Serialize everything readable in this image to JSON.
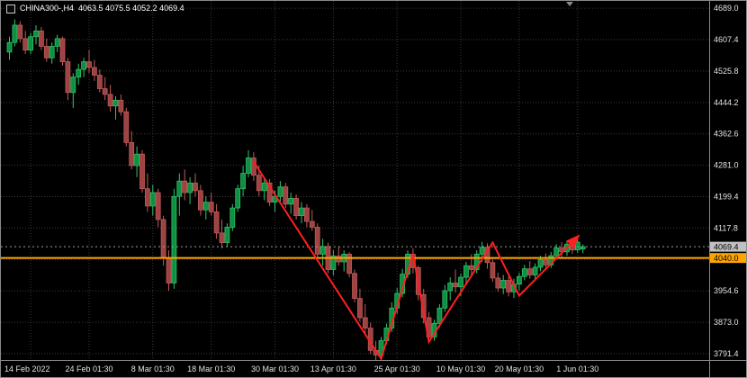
{
  "window": {
    "title_symbol": "CHINA300-,H4",
    "title_ohlc": "4063.5 4075.5 4052.2 4069.4"
  },
  "colors": {
    "background": "#000000",
    "grid": "#3a3a3a",
    "up_fill": "#0e8f41",
    "up_edge": "#31c56b",
    "down_fill": "#9e4242",
    "down_edge": "#c05c5c",
    "trendline": "#ff1f1f",
    "hline": "#ffa500",
    "bid_line": "#9c9c9c",
    "bid_tag_bg": "#c0c0c0",
    "axis_text": "#e2e2e2",
    "separator": "#8a8a8a"
  },
  "price_axis": {
    "bid_tag": "4069.4",
    "hline_tag": "4040.0"
  },
  "chart_data": {
    "type": "candlestick",
    "title": "CHINA300-,H4",
    "symbol": "CHINA300-",
    "timeframe": "H4",
    "legend_position": "none",
    "grid": true,
    "price_range": [
      3775,
      4708
    ],
    "y_ticks": [
      {
        "price": 4689.0,
        "label": "4689.0"
      },
      {
        "price": 4607.4,
        "label": "4607.4"
      },
      {
        "price": 4525.8,
        "label": "4525.8"
      },
      {
        "price": 4444.2,
        "label": "4444.2"
      },
      {
        "price": 4362.6,
        "label": "4362.6"
      },
      {
        "price": 4281.0,
        "label": "4281.0"
      },
      {
        "price": 4199.4,
        "label": "4199.4"
      },
      {
        "price": 4117.8,
        "label": "4117.8"
      },
      {
        "price": 4036.2,
        "label": "4036.2"
      },
      {
        "price": 3954.6,
        "label": "3954.6"
      },
      {
        "price": 3873.0,
        "label": "3873.0"
      },
      {
        "price": 3791.4,
        "label": "3791.4"
      }
    ],
    "time_labels": [
      {
        "bar": 4,
        "label": "14 Feb 2022"
      },
      {
        "bar": 15,
        "label": "24 Feb 01:30"
      },
      {
        "bar": 27,
        "label": "8 Mar 01:30"
      },
      {
        "bar": 38,
        "label": "18 Mar 01:30"
      },
      {
        "bar": 50,
        "label": "30 Mar 01:30"
      },
      {
        "bar": 61,
        "label": "13 Apr 01:30"
      },
      {
        "bar": 73,
        "label": "25 Apr 01:30"
      },
      {
        "bar": 85,
        "label": "10 May 01:30"
      },
      {
        "bar": 96,
        "label": "20 May 01:30"
      },
      {
        "bar": 107,
        "label": "1 Jun 01:30"
      }
    ],
    "bid": {
      "price": 4069.4,
      "label": "4069.4"
    },
    "hline": {
      "price": 4040.0,
      "label": "4040.0"
    },
    "trendline": {
      "points": [
        [
          46,
          4290
        ],
        [
          70,
          3778
        ],
        [
          76,
          4050
        ],
        [
          79,
          3822
        ],
        [
          91,
          4080
        ],
        [
          96,
          3942
        ],
        [
          107,
          4095
        ]
      ],
      "arrow_end": true
    },
    "candles": [
      [
        4575,
        4615,
        4555,
        4600
      ],
      [
        4600,
        4660,
        4590,
        4645
      ],
      [
        4645,
        4655,
        4600,
        4610
      ],
      [
        4610,
        4630,
        4570,
        4580
      ],
      [
        4580,
        4625,
        4570,
        4615
      ],
      [
        4615,
        4645,
        4595,
        4630
      ],
      [
        4630,
        4640,
        4580,
        4590
      ],
      [
        4590,
        4610,
        4550,
        4560
      ],
      [
        4560,
        4600,
        4545,
        4590
      ],
      [
        4590,
        4620,
        4575,
        4610
      ],
      [
        4610,
        4615,
        4540,
        4550
      ],
      [
        4550,
        4560,
        4450,
        4470
      ],
      [
        4470,
        4520,
        4430,
        4510
      ],
      [
        4510,
        4545,
        4490,
        4530
      ],
      [
        4530,
        4560,
        4510,
        4550
      ],
      [
        4550,
        4580,
        4520,
        4535
      ],
      [
        4535,
        4555,
        4500,
        4515
      ],
      [
        4515,
        4530,
        4470,
        4480
      ],
      [
        4480,
        4510,
        4450,
        4465
      ],
      [
        4465,
        4490,
        4420,
        4435
      ],
      [
        4435,
        4460,
        4400,
        4450
      ],
      [
        4450,
        4465,
        4410,
        4420
      ],
      [
        4420,
        4430,
        4330,
        4340
      ],
      [
        4340,
        4370,
        4270,
        4280
      ],
      [
        4280,
        4330,
        4250,
        4310
      ],
      [
        4310,
        4320,
        4210,
        4220
      ],
      [
        4220,
        4260,
        4160,
        4175
      ],
      [
        4175,
        4230,
        4150,
        4210
      ],
      [
        4210,
        4220,
        4120,
        4140
      ],
      [
        4140,
        4150,
        4020,
        4040
      ],
      [
        4040,
        4060,
        3955,
        3975
      ],
      [
        3975,
        4220,
        3960,
        4200
      ],
      [
        4200,
        4260,
        4150,
        4240
      ],
      [
        4240,
        4270,
        4190,
        4210
      ],
      [
        4210,
        4250,
        4180,
        4235
      ],
      [
        4235,
        4260,
        4200,
        4215
      ],
      [
        4215,
        4230,
        4150,
        4165
      ],
      [
        4165,
        4200,
        4140,
        4185
      ],
      [
        4185,
        4210,
        4150,
        4160
      ],
      [
        4160,
        4180,
        4090,
        4105
      ],
      [
        4105,
        4140,
        4065,
        4080
      ],
      [
        4080,
        4130,
        4070,
        4120
      ],
      [
        4120,
        4180,
        4110,
        4170
      ],
      [
        4170,
        4230,
        4160,
        4220
      ],
      [
        4220,
        4280,
        4200,
        4260
      ],
      [
        4260,
        4320,
        4250,
        4300
      ],
      [
        4300,
        4315,
        4240,
        4255
      ],
      [
        4255,
        4280,
        4200,
        4215
      ],
      [
        4215,
        4250,
        4190,
        4235
      ],
      [
        4235,
        4245,
        4175,
        4185
      ],
      [
        4185,
        4215,
        4160,
        4200
      ],
      [
        4200,
        4240,
        4185,
        4225
      ],
      [
        4225,
        4235,
        4170,
        4180
      ],
      [
        4180,
        4210,
        4155,
        4195
      ],
      [
        4195,
        4205,
        4140,
        4150
      ],
      [
        4150,
        4185,
        4130,
        4170
      ],
      [
        4170,
        4180,
        4120,
        4135
      ],
      [
        4135,
        4165,
        4110,
        4120
      ],
      [
        4120,
        4130,
        4040,
        4050
      ],
      [
        4050,
        4090,
        4020,
        4070
      ],
      [
        4070,
        4080,
        4000,
        4010
      ],
      [
        4010,
        4060,
        3995,
        4045
      ],
      [
        4045,
        4070,
        4020,
        4030
      ],
      [
        4030,
        4060,
        4005,
        4050
      ],
      [
        4050,
        4055,
        3990,
        4000
      ],
      [
        4000,
        4010,
        3925,
        3935
      ],
      [
        3935,
        3960,
        3875,
        3885
      ],
      [
        3885,
        3920,
        3845,
        3858
      ],
      [
        3858,
        3872,
        3790,
        3800
      ],
      [
        3800,
        3825,
        3775,
        3788
      ],
      [
        3788,
        3835,
        3780,
        3825
      ],
      [
        3825,
        3870,
        3815,
        3858
      ],
      [
        3858,
        3925,
        3848,
        3910
      ],
      [
        3910,
        3962,
        3895,
        3948
      ],
      [
        3948,
        4012,
        3938,
        3998
      ],
      [
        3998,
        4060,
        3988,
        4050
      ],
      [
        4050,
        4065,
        4000,
        4015
      ],
      [
        4015,
        4020,
        3930,
        3945
      ],
      [
        3945,
        3960,
        3870,
        3885
      ],
      [
        3885,
        3900,
        3820,
        3835
      ],
      [
        3835,
        3880,
        3825,
        3870
      ],
      [
        3870,
        3920,
        3860,
        3910
      ],
      [
        3910,
        3970,
        3900,
        3955
      ],
      [
        3955,
        3990,
        3930,
        3975
      ],
      [
        3975,
        4010,
        3950,
        3965
      ],
      [
        3965,
        4000,
        3940,
        3990
      ],
      [
        3990,
        4030,
        3975,
        4020
      ],
      [
        4020,
        4050,
        3995,
        4010
      ],
      [
        4010,
        4060,
        4000,
        4050
      ],
      [
        4050,
        4082,
        4030,
        4068
      ],
      [
        4068,
        4078,
        4012,
        4028
      ],
      [
        4028,
        4038,
        3978,
        3988
      ],
      [
        3988,
        4002,
        3952,
        3962
      ],
      [
        3962,
        3996,
        3946,
        3982
      ],
      [
        3982,
        3992,
        3940,
        3952
      ],
      [
        3952,
        3986,
        3936,
        3972
      ],
      [
        3972,
        4002,
        3956,
        3992
      ],
      [
        3992,
        4022,
        3982,
        4012
      ],
      [
        4012,
        4032,
        3986,
        3996
      ],
      [
        3996,
        4026,
        3986,
        4016
      ],
      [
        4016,
        4046,
        4006,
        4036
      ],
      [
        4036,
        4052,
        4012,
        4022
      ],
      [
        4022,
        4056,
        4014,
        4046
      ],
      [
        4046,
        4076,
        4036,
        4066
      ],
      [
        4066,
        4081,
        4041,
        4056
      ],
      [
        4056,
        4086,
        4046,
        4076
      ],
      [
        4076,
        4091,
        4051,
        4061
      ],
      [
        4061,
        4089,
        4053,
        4081
      ],
      [
        4063.5,
        4075.5,
        4052.2,
        4069.4
      ]
    ]
  }
}
